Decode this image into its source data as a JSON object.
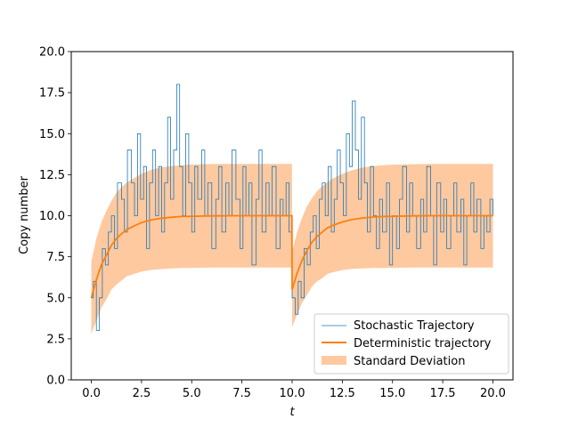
{
  "chart_data": {
    "type": "line",
    "title": "",
    "xlabel": "t",
    "ylabel": "Copy number",
    "xlim": [
      -1.0,
      21.0
    ],
    "ylim": [
      0.0,
      20.0
    ],
    "xticks": [
      0.0,
      2.5,
      5.0,
      7.5,
      10.0,
      12.5,
      15.0,
      17.5,
      20.0
    ],
    "xtick_labels": [
      "0.0",
      "2.5",
      "5.0",
      "7.5",
      "10.0",
      "12.5",
      "15.0",
      "17.5",
      "20.0"
    ],
    "yticks": [
      0.0,
      2.5,
      5.0,
      7.5,
      10.0,
      12.5,
      15.0,
      17.5,
      20.0
    ],
    "ytick_labels": [
      "0.0",
      "2.5",
      "5.0",
      "7.5",
      "10.0",
      "12.5",
      "15.0",
      "17.5",
      "20.0"
    ],
    "grid": false,
    "legend_position": "lower-right",
    "colors": {
      "stochastic": "#1f77b4",
      "deterministic": "#ff7f0e",
      "band": "#ffc9a0"
    },
    "legend": [
      "Stochastic Trajectory",
      "Deterministic trajectory",
      "Standard Deviation"
    ],
    "series": [
      {
        "name": "Stochastic Trajectory",
        "style": "step",
        "x": [
          0.0,
          0.1,
          0.25,
          0.4,
          0.55,
          0.7,
          0.85,
          1.0,
          1.15,
          1.3,
          1.5,
          1.65,
          1.8,
          2.0,
          2.15,
          2.3,
          2.45,
          2.6,
          2.75,
          2.9,
          3.05,
          3.2,
          3.35,
          3.5,
          3.65,
          3.8,
          3.95,
          4.1,
          4.25,
          4.4,
          4.55,
          4.7,
          4.85,
          5.0,
          5.15,
          5.3,
          5.5,
          5.65,
          5.8,
          6.0,
          6.2,
          6.35,
          6.5,
          6.7,
          6.85,
          7.0,
          7.2,
          7.4,
          7.55,
          7.7,
          7.85,
          8.0,
          8.2,
          8.35,
          8.5,
          8.7,
          8.85,
          9.0,
          9.2,
          9.4,
          9.55,
          9.7,
          9.85,
          10.0,
          10.15,
          10.3,
          10.45,
          10.6,
          10.75,
          10.9,
          11.05,
          11.2,
          11.35,
          11.5,
          11.65,
          11.8,
          11.95,
          12.1,
          12.25,
          12.4,
          12.55,
          12.7,
          12.85,
          13.0,
          13.15,
          13.3,
          13.45,
          13.6,
          13.75,
          13.9,
          14.05,
          14.2,
          14.35,
          14.5,
          14.7,
          14.85,
          15.0,
          15.2,
          15.35,
          15.5,
          15.7,
          15.85,
          16.0,
          16.2,
          16.4,
          16.55,
          16.7,
          16.9,
          17.05,
          17.2,
          17.4,
          17.55,
          17.7,
          17.9,
          18.05,
          18.2,
          18.4,
          18.55,
          18.7,
          18.9,
          19.05,
          19.2,
          19.4,
          19.55,
          19.7,
          19.85,
          20.0
        ],
        "values": [
          5,
          6,
          3,
          5,
          8,
          7,
          9,
          10,
          8,
          12,
          11,
          9,
          14,
          12,
          10,
          15,
          11,
          13,
          8,
          12,
          14,
          10,
          13,
          9,
          12,
          16,
          11,
          14,
          18,
          13,
          10,
          15,
          12,
          9,
          13,
          11,
          14,
          10,
          12,
          8,
          11,
          13,
          9,
          12,
          10,
          14,
          11,
          8,
          13,
          10,
          12,
          7,
          11,
          14,
          9,
          12,
          10,
          13,
          8,
          11,
          10,
          12,
          9,
          5,
          4,
          6,
          5,
          8,
          7,
          9,
          10,
          8,
          11,
          12,
          10,
          13,
          9,
          11,
          14,
          12,
          10,
          15,
          13,
          17,
          14,
          11,
          16,
          12,
          9,
          13,
          10,
          8,
          11,
          9,
          12,
          7,
          10,
          8,
          11,
          13,
          9,
          12,
          10,
          8,
          11,
          9,
          13,
          10,
          7,
          12,
          9,
          11,
          8,
          10,
          12,
          9,
          11,
          7,
          10,
          12,
          9,
          11,
          8,
          10,
          9,
          11,
          10
        ]
      },
      {
        "name": "Deterministic trajectory",
        "style": "line",
        "x": [
          0.0,
          0.25,
          0.5,
          0.75,
          1.0,
          1.25,
          1.5,
          1.75,
          2.0,
          2.5,
          3.0,
          3.5,
          4.0,
          4.5,
          5.0,
          6.0,
          7.0,
          8.0,
          9.0,
          9.99,
          10.0,
          10.25,
          10.5,
          10.75,
          11.0,
          11.25,
          11.5,
          11.75,
          12.0,
          12.5,
          13.0,
          13.5,
          14.0,
          14.5,
          15.0,
          16.0,
          17.0,
          18.0,
          19.0,
          20.0
        ],
        "values": [
          5.0,
          6.1,
          7.0,
          7.6,
          8.2,
          8.6,
          8.9,
          9.15,
          9.3,
          9.58,
          9.75,
          9.85,
          9.91,
          9.95,
          9.97,
          9.99,
          10.0,
          10.0,
          10.0,
          10.0,
          5.5,
          6.5,
          7.3,
          7.9,
          8.4,
          8.75,
          9.0,
          9.25,
          9.4,
          9.62,
          9.77,
          9.86,
          9.92,
          9.95,
          9.97,
          9.99,
          10.0,
          10.0,
          10.0,
          10.0
        ]
      },
      {
        "name": "Standard Deviation",
        "style": "band",
        "x": [
          0.0,
          0.25,
          0.5,
          0.75,
          1.0,
          1.25,
          1.5,
          1.75,
          2.0,
          2.5,
          3.0,
          3.5,
          4.0,
          4.5,
          5.0,
          6.0,
          7.0,
          8.0,
          9.0,
          9.99,
          10.0,
          10.25,
          10.5,
          10.75,
          11.0,
          11.25,
          11.5,
          11.75,
          12.0,
          12.5,
          13.0,
          13.5,
          14.0,
          14.5,
          15.0,
          16.0,
          17.0,
          18.0,
          19.0,
          20.0
        ],
        "upper": [
          7.2,
          8.6,
          9.6,
          10.3,
          10.9,
          11.4,
          11.75,
          12.0,
          12.2,
          12.55,
          12.8,
          12.95,
          13.03,
          13.08,
          13.12,
          13.15,
          13.16,
          13.16,
          13.16,
          13.16,
          7.8,
          9.0,
          9.9,
          10.6,
          11.1,
          11.5,
          11.8,
          12.05,
          12.25,
          12.55,
          12.78,
          12.93,
          13.02,
          13.08,
          13.11,
          13.14,
          13.16,
          13.16,
          13.16,
          13.16
        ],
        "lower": [
          2.8,
          3.6,
          4.4,
          4.9,
          5.5,
          5.8,
          6.05,
          6.3,
          6.4,
          6.6,
          6.7,
          6.75,
          6.79,
          6.82,
          6.82,
          6.84,
          6.84,
          6.84,
          6.84,
          6.84,
          3.2,
          4.0,
          4.7,
          5.2,
          5.7,
          6.0,
          6.2,
          6.45,
          6.55,
          6.69,
          6.76,
          6.79,
          6.82,
          6.82,
          6.83,
          6.84,
          6.84,
          6.84,
          6.84,
          6.84
        ]
      }
    ]
  }
}
